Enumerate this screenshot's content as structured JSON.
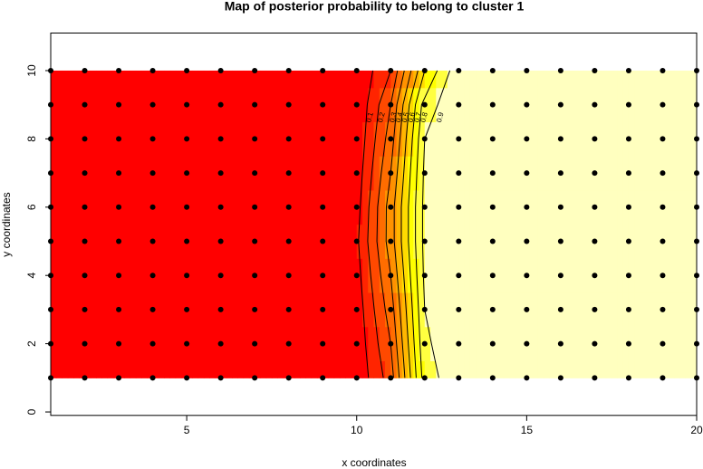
{
  "chart_data": {
    "type": "contour",
    "title": "Map of posterior probability to belong to cluster  1",
    "x_label": "x coordinates",
    "y_label": "y coordinates",
    "x": [
      1,
      2,
      3,
      4,
      5,
      6,
      7,
      8,
      9,
      10,
      11,
      12,
      13,
      14,
      15,
      16,
      17,
      18,
      19,
      20
    ],
    "y": [
      1,
      2,
      3,
      4,
      5,
      6,
      7,
      8,
      9,
      10
    ],
    "z": [
      [
        0,
        0,
        0,
        0,
        0,
        0,
        0,
        0,
        0,
        0.02,
        0.25,
        0.85,
        0.97,
        1,
        1,
        1,
        1,
        1,
        1,
        1
      ],
      [
        0,
        0,
        0,
        0,
        0,
        0,
        0,
        0,
        0,
        0.03,
        0.3,
        0.88,
        0.98,
        1,
        1,
        1,
        1,
        1,
        1,
        1
      ],
      [
        0,
        0,
        0,
        0,
        0,
        0,
        0,
        0,
        0,
        0.04,
        0.35,
        0.9,
        0.98,
        1,
        1,
        1,
        1,
        1,
        1,
        1
      ],
      [
        0,
        0,
        0,
        0,
        0,
        0,
        0,
        0,
        0,
        0.06,
        0.4,
        0.92,
        0.99,
        1,
        1,
        1,
        1,
        1,
        1,
        1
      ],
      [
        0,
        0,
        0,
        0,
        0,
        0,
        0,
        0,
        0,
        0.08,
        0.45,
        0.93,
        0.99,
        1,
        1,
        1,
        1,
        1,
        1,
        1
      ],
      [
        0,
        0,
        0,
        0,
        0,
        0,
        0,
        0,
        0,
        0.06,
        0.45,
        0.93,
        0.99,
        1,
        1,
        1,
        1,
        1,
        1,
        1
      ],
      [
        0,
        0,
        0,
        0,
        0,
        0,
        0,
        0,
        0,
        0.04,
        0.4,
        0.92,
        0.99,
        1,
        1,
        1,
        1,
        1,
        1,
        1
      ],
      [
        0,
        0,
        0,
        0,
        0,
        0,
        0,
        0,
        0,
        0.02,
        0.35,
        0.9,
        0.99,
        1,
        1,
        1,
        1,
        1,
        1,
        1
      ],
      [
        0,
        0,
        0,
        0,
        0,
        0,
        0,
        0,
        0,
        0.01,
        0.3,
        0.85,
        0.98,
        1,
        1,
        1,
        1,
        1,
        1,
        1
      ],
      [
        0,
        0,
        0,
        0,
        0,
        0,
        0,
        0,
        0,
        0.01,
        0.2,
        0.7,
        0.97,
        1,
        1,
        1,
        1,
        1,
        1,
        1
      ]
    ],
    "levels": [
      0.1,
      0.2,
      0.3,
      0.4,
      0.5,
      0.6,
      0.7,
      0.8,
      0.9
    ],
    "colors": [
      "#FF0000",
      "#FF2400",
      "#FF4900",
      "#FF6D00",
      "#FF9200",
      "#FFB600",
      "#FFDB00",
      "#FFFF00",
      "#FFFF40",
      "#FFFFBF"
    ],
    "xlim": [
      1,
      20
    ],
    "ylim": [
      -0.1,
      11.1
    ],
    "xticks": [
      5,
      10,
      15,
      20
    ],
    "yticks": [
      0,
      2,
      4,
      6,
      8,
      10
    ]
  }
}
